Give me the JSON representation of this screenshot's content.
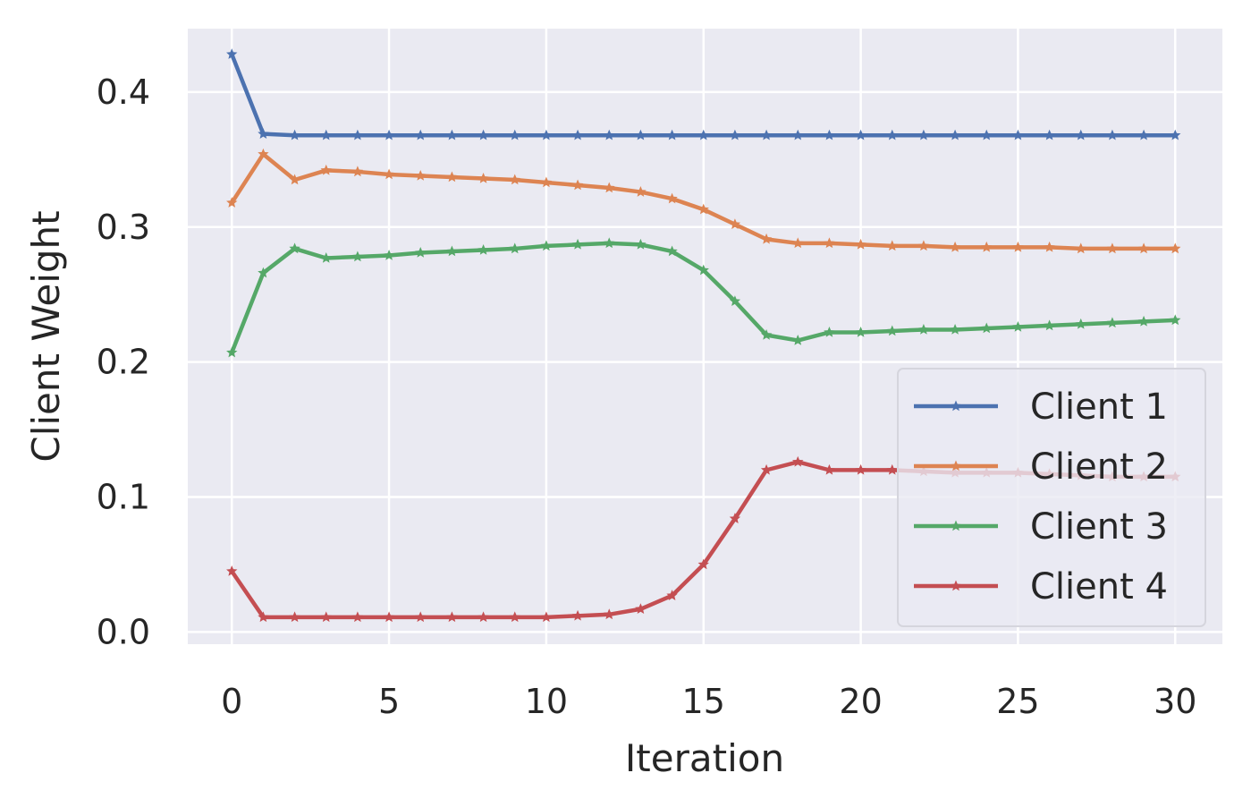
{
  "chart_data": {
    "type": "line",
    "title": "",
    "xlabel": "Iteration",
    "ylabel": "Client Weight",
    "xlim": [
      -1.4,
      31.5
    ],
    "ylim": [
      -0.009,
      0.447
    ],
    "xticks": [
      0,
      5,
      10,
      15,
      20,
      25,
      30
    ],
    "yticks": [
      0.0,
      0.1,
      0.2,
      0.3,
      0.4
    ],
    "xtick_labels": [
      "0",
      "5",
      "10",
      "15",
      "20",
      "25",
      "30"
    ],
    "ytick_labels": [
      "0.0",
      "0.1",
      "0.2",
      "0.3",
      "0.4"
    ],
    "grid": true,
    "legend_position": "lower-right",
    "marker": "star",
    "x": [
      0,
      1,
      2,
      3,
      4,
      5,
      6,
      7,
      8,
      9,
      10,
      11,
      12,
      13,
      14,
      15,
      16,
      17,
      18,
      19,
      20,
      21,
      22,
      23,
      24,
      25,
      26,
      27,
      28,
      29,
      30
    ],
    "series": [
      {
        "name": "Client 1",
        "color": "#4c72b0",
        "values": [
          0.428,
          0.369,
          0.368,
          0.368,
          0.368,
          0.368,
          0.368,
          0.368,
          0.368,
          0.368,
          0.368,
          0.368,
          0.368,
          0.368,
          0.368,
          0.368,
          0.368,
          0.368,
          0.368,
          0.368,
          0.368,
          0.368,
          0.368,
          0.368,
          0.368,
          0.368,
          0.368,
          0.368,
          0.368,
          0.368,
          0.368
        ]
      },
      {
        "name": "Client 2",
        "color": "#dd8452",
        "values": [
          0.318,
          0.354,
          0.335,
          0.342,
          0.341,
          0.339,
          0.338,
          0.337,
          0.336,
          0.335,
          0.333,
          0.331,
          0.329,
          0.326,
          0.321,
          0.313,
          0.302,
          0.291,
          0.288,
          0.288,
          0.287,
          0.286,
          0.286,
          0.285,
          0.285,
          0.285,
          0.285,
          0.284,
          0.284,
          0.284,
          0.284
        ]
      },
      {
        "name": "Client 3",
        "color": "#55a868",
        "values": [
          0.207,
          0.266,
          0.284,
          0.277,
          0.278,
          0.279,
          0.281,
          0.282,
          0.283,
          0.284,
          0.286,
          0.287,
          0.288,
          0.287,
          0.282,
          0.268,
          0.245,
          0.22,
          0.216,
          0.222,
          0.222,
          0.223,
          0.224,
          0.224,
          0.225,
          0.226,
          0.227,
          0.228,
          0.229,
          0.23,
          0.231
        ]
      },
      {
        "name": "Client 4",
        "color": "#c44e52",
        "values": [
          0.045,
          0.011,
          0.011,
          0.011,
          0.011,
          0.011,
          0.011,
          0.011,
          0.011,
          0.011,
          0.011,
          0.012,
          0.013,
          0.017,
          0.027,
          0.05,
          0.084,
          0.12,
          0.126,
          0.12,
          0.12,
          0.12,
          0.119,
          0.118,
          0.118,
          0.118,
          0.117,
          0.116,
          0.115,
          0.115,
          0.115
        ]
      }
    ]
  }
}
